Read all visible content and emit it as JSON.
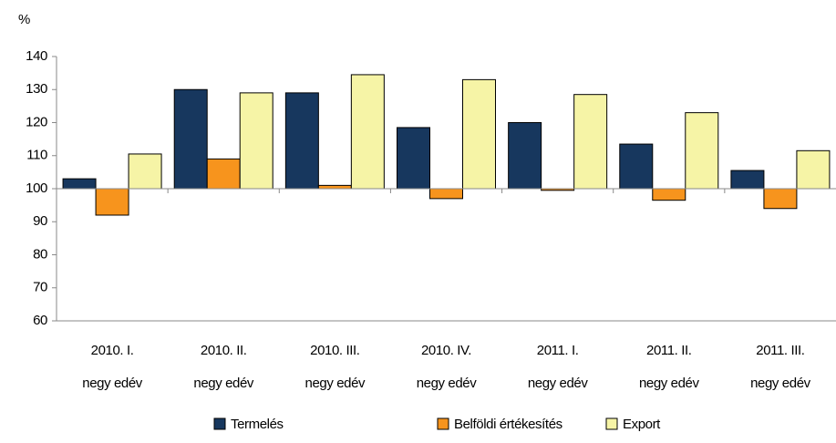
{
  "chart_data": {
    "type": "bar",
    "y_label": "%",
    "categories": [
      [
        "2010. I.",
        "negy edév"
      ],
      [
        "2010. II.",
        "negy edév"
      ],
      [
        "2010. III.",
        "negy edév"
      ],
      [
        "2010. IV.",
        "negy edév"
      ],
      [
        "2011. I.",
        "negy edév"
      ],
      [
        "2011. II.",
        "negy edév"
      ],
      [
        "2011. III.",
        "negy edév"
      ]
    ],
    "series": [
      {
        "name": "Termelés",
        "color": "#17375e",
        "values": [
          103,
          130,
          129,
          118.5,
          120,
          113.5,
          105.5
        ]
      },
      {
        "name": "Belföldi értékesítés",
        "color": "#f7941d",
        "values": [
          92,
          109,
          101,
          97,
          99.5,
          96.5,
          94
        ]
      },
      {
        "name": "Export",
        "color": "#f6f4a6",
        "values": [
          110.5,
          129,
          134.5,
          133,
          128.5,
          123,
          111.5
        ]
      }
    ],
    "baseline": 100,
    "ylim": [
      60,
      140
    ],
    "yticks": [
      60,
      70,
      80,
      90,
      100,
      110,
      120,
      130,
      140
    ],
    "grid": false,
    "legend": "bottom"
  }
}
